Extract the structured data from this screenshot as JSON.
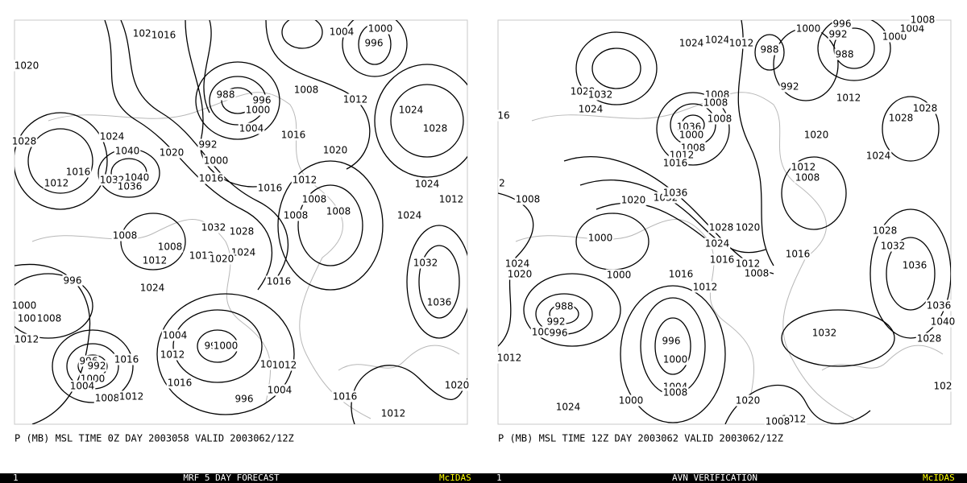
{
  "panels": [
    {
      "caption": "P (MB) MSL TIME 0Z DAY 2003058 VALID 2003062/12Z",
      "footer": {
        "number": "1",
        "title": "MRF 5 DAY FORECAST",
        "brand": "McIDAS"
      },
      "contour_labels": [
        "1020",
        "1016",
        "1004",
        "1000",
        "996",
        "1020",
        "988",
        "996",
        "1008",
        "1012",
        "1024",
        "1000",
        "1004",
        "1028",
        "1028",
        "1024",
        "1016",
        "992",
        "1040",
        "1020",
        "1020",
        "1000",
        "1016",
        "1012",
        "1032",
        "1040",
        "1036",
        "1016",
        "1012",
        "1024",
        "1016",
        "1008",
        "1012",
        "1008",
        "1008",
        "1024",
        "1032",
        "1028",
        "1008",
        "1008",
        "1012",
        "1024",
        "1020",
        "1012",
        "1032",
        "996",
        "1016",
        "1024",
        "1036",
        "1000",
        "1004",
        "1008",
        "1004",
        "1012",
        "996",
        "1000",
        "1012",
        "1016",
        "996",
        "992",
        "1008",
        "1012",
        "1000",
        "1004",
        "1016",
        "1004",
        "1008",
        "1012",
        "996",
        "1016",
        "1020",
        "1012"
      ]
    },
    {
      "caption": "P (MB) MSL TIME 12Z DAY 2003062 VALID 2003062/12Z",
      "footer": {
        "number": "1",
        "title": "AVN VERIFICATION",
        "brand": "McIDAS"
      },
      "contour_labels": [
        "1000",
        "996",
        "992",
        "1000",
        "1004",
        "1008",
        "1024",
        "1024",
        "1012",
        "988",
        "988",
        "992",
        "1028",
        "1032",
        "1024",
        "1008",
        "1008",
        "1012",
        "1028",
        "16",
        "1008",
        "1028",
        "1036",
        "1000",
        "1020",
        "1008",
        "1012",
        "1016",
        "1024",
        "1012",
        "1008",
        "2",
        "1008",
        "1020",
        "1032",
        "1036",
        "1028",
        "1020",
        "1028",
        "1000",
        "1024",
        "1032",
        "1024",
        "1016",
        "1012",
        "1016",
        "1036",
        "1008",
        "1020",
        "1000",
        "1016",
        "1012",
        "988",
        "1036",
        "992",
        "1040",
        "1000",
        "996",
        "1032",
        "996",
        "1012",
        "1028",
        "1000",
        "1004",
        "1008",
        "1000",
        "1020",
        "1024",
        "102",
        "1012",
        "1008"
      ]
    }
  ]
}
